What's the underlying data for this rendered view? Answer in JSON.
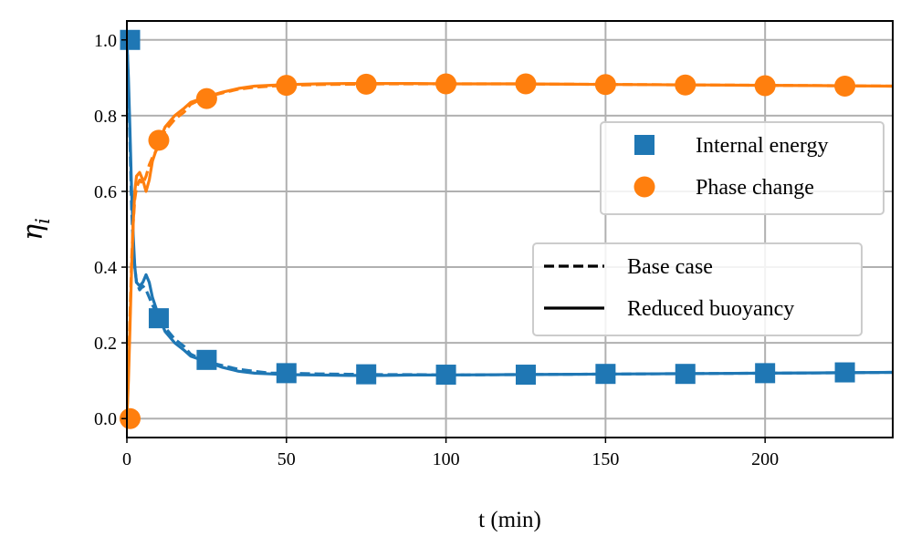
{
  "chart_data": {
    "type": "line",
    "title": "",
    "xlabel": "t (min)",
    "ylabel": {
      "main": "η",
      "sub": "i"
    },
    "xlim": [
      0,
      240
    ],
    "ylim": [
      -0.05,
      1.05
    ],
    "xticks": [
      0,
      50,
      100,
      150,
      200
    ],
    "yticks": [
      0.0,
      0.2,
      0.4,
      0.6,
      0.8,
      1.0
    ],
    "xtick_labels": [
      "0",
      "50",
      "100",
      "150",
      "200"
    ],
    "ytick_labels": [
      "0.0",
      "0.2",
      "0.4",
      "0.6",
      "0.8",
      "1.0"
    ],
    "grid": true,
    "colors": {
      "internal_energy": "#1f77b4",
      "phase_change": "#ff7f0e",
      "grid": "#b0b0b0",
      "text": "#000000"
    },
    "legend_markers": {
      "placement": "right",
      "entries": [
        {
          "label": "Internal energy",
          "marker": "square",
          "series": "internal_energy"
        },
        {
          "label": "Phase change",
          "marker": "circle",
          "series": "phase_change"
        }
      ]
    },
    "legend_lines": {
      "placement": "lower-right",
      "entries": [
        {
          "label": "Base case",
          "style": "dashed"
        },
        {
          "label": "Reduced buoyancy",
          "style": "solid"
        }
      ]
    },
    "series": [
      {
        "name": "Internal energy — Base case",
        "key": "internal_energy",
        "style": "dashed",
        "x": [
          0,
          0.5,
          1,
          1.5,
          2,
          2.5,
          3,
          4,
          5,
          6,
          7,
          8,
          10,
          12,
          15,
          18,
          20,
          25,
          30,
          35,
          40,
          45,
          50,
          60,
          70,
          80,
          90,
          100,
          120,
          140,
          160,
          180,
          200,
          220,
          240
        ],
        "y": [
          1.0,
          0.88,
          0.72,
          0.55,
          0.45,
          0.4,
          0.36,
          0.34,
          0.35,
          0.34,
          0.32,
          0.3,
          0.27,
          0.24,
          0.21,
          0.19,
          0.17,
          0.15,
          0.14,
          0.13,
          0.125,
          0.12,
          0.12,
          0.118,
          0.117,
          0.116,
          0.116,
          0.115,
          0.116,
          0.117,
          0.118,
          0.119,
          0.12,
          0.121,
          0.122
        ]
      },
      {
        "name": "Internal energy — Reduced buoyancy",
        "key": "internal_energy",
        "style": "solid",
        "x": [
          0,
          0.5,
          1,
          1.5,
          2,
          2.5,
          3,
          4,
          5,
          6,
          7,
          8,
          10,
          12,
          15,
          18,
          20,
          25,
          30,
          35,
          40,
          45,
          50,
          60,
          70,
          80,
          90,
          100,
          120,
          140,
          160,
          180,
          200,
          220,
          240
        ],
        "y": [
          1.0,
          0.9,
          0.75,
          0.6,
          0.48,
          0.4,
          0.36,
          0.35,
          0.36,
          0.38,
          0.36,
          0.32,
          0.27,
          0.23,
          0.2,
          0.18,
          0.165,
          0.15,
          0.135,
          0.125,
          0.12,
          0.118,
          0.116,
          0.115,
          0.114,
          0.114,
          0.115,
          0.115,
          0.116,
          0.117,
          0.118,
          0.119,
          0.12,
          0.121,
          0.122
        ]
      },
      {
        "name": "Phase change — Base case",
        "key": "phase_change",
        "style": "dashed",
        "x": [
          0,
          0.5,
          1,
          1.5,
          2,
          2.5,
          3,
          4,
          5,
          6,
          7,
          8,
          10,
          12,
          15,
          18,
          20,
          25,
          30,
          35,
          40,
          45,
          50,
          60,
          70,
          80,
          90,
          100,
          120,
          140,
          160,
          180,
          200,
          220,
          240
        ],
        "y": [
          0.0,
          0.12,
          0.28,
          0.42,
          0.52,
          0.58,
          0.61,
          0.63,
          0.62,
          0.64,
          0.67,
          0.69,
          0.72,
          0.76,
          0.79,
          0.81,
          0.83,
          0.85,
          0.86,
          0.87,
          0.875,
          0.878,
          0.88,
          0.882,
          0.883,
          0.884,
          0.884,
          0.884,
          0.884,
          0.883,
          0.882,
          0.881,
          0.88,
          0.879,
          0.878
        ]
      },
      {
        "name": "Phase change — Reduced buoyancy",
        "key": "phase_change",
        "style": "solid",
        "x": [
          0,
          0.5,
          1,
          1.5,
          2,
          2.5,
          3,
          4,
          5,
          6,
          7,
          8,
          10,
          12,
          15,
          18,
          20,
          25,
          30,
          35,
          40,
          45,
          50,
          60,
          70,
          80,
          90,
          100,
          120,
          140,
          160,
          180,
          200,
          220,
          240
        ],
        "y": [
          0.0,
          0.1,
          0.25,
          0.4,
          0.52,
          0.6,
          0.64,
          0.65,
          0.63,
          0.6,
          0.63,
          0.68,
          0.73,
          0.77,
          0.8,
          0.82,
          0.835,
          0.85,
          0.862,
          0.872,
          0.878,
          0.88,
          0.882,
          0.884,
          0.885,
          0.885,
          0.885,
          0.884,
          0.884,
          0.883,
          0.882,
          0.881,
          0.88,
          0.879,
          0.878
        ]
      }
    ],
    "markers": [
      {
        "key": "internal_energy",
        "shape": "square",
        "x": [
          1,
          10,
          25,
          50,
          75,
          100,
          125,
          150,
          175,
          200,
          225
        ],
        "y": [
          1.0,
          0.265,
          0.155,
          0.12,
          0.117,
          0.116,
          0.116,
          0.118,
          0.118,
          0.12,
          0.122
        ]
      },
      {
        "key": "phase_change",
        "shape": "circle",
        "x": [
          1,
          10,
          25,
          50,
          75,
          100,
          125,
          150,
          175,
          200,
          225
        ],
        "y": [
          0.0,
          0.735,
          0.845,
          0.88,
          0.883,
          0.884,
          0.884,
          0.882,
          0.881,
          0.879,
          0.878
        ]
      }
    ]
  }
}
